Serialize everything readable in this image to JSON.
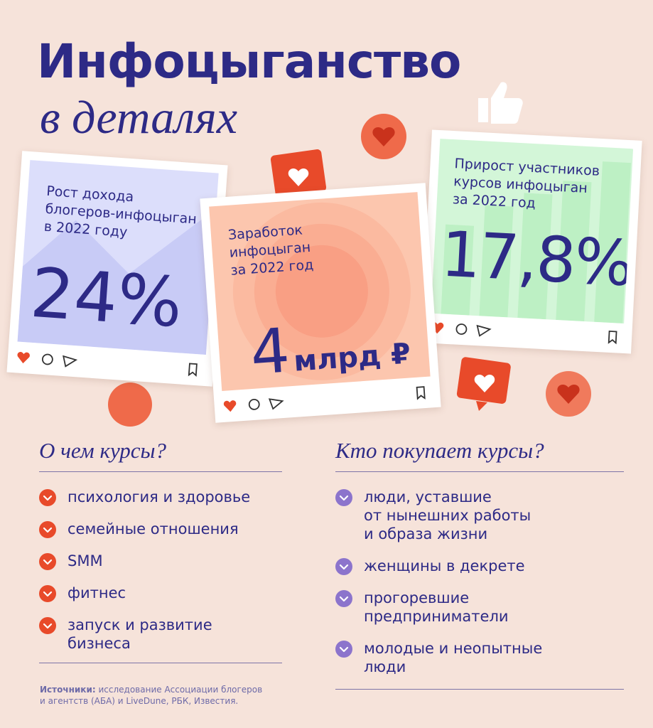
{
  "title": {
    "line1": "Инфоцыганство",
    "line2": "в деталях"
  },
  "cards": [
    {
      "label": [
        "Рост дохода",
        "блогеров-инфоцыган",
        "в 2022 году"
      ],
      "value": "24%"
    },
    {
      "label": [
        "Заработок",
        "инфоцыган",
        "за 2022 год"
      ],
      "value": "4",
      "unit": "млрд ₽"
    },
    {
      "label": [
        "Прирост участников",
        "курсов инфоцыган",
        "за 2022 год"
      ],
      "value": "17,8%"
    }
  ],
  "sections": [
    {
      "heading": "О чем курсы?",
      "items": [
        [
          "психология и здоровье"
        ],
        [
          "семейные отношения"
        ],
        [
          "SMM"
        ],
        [
          "фитнес"
        ],
        [
          "запуск и развитие",
          "бизнеса"
        ]
      ]
    },
    {
      "heading": "Кто покупает курсы?",
      "items": [
        [
          "люди, уставшие",
          "от нынешних работы",
          "и образа жизни"
        ],
        [
          "женщины в декрете"
        ],
        [
          "прогоревшие",
          "предприниматели"
        ],
        [
          "молодые и неопытные",
          "люди"
        ]
      ]
    }
  ],
  "sources": {
    "label": "Источники:",
    "lines": [
      "исследование Ассоциации блогеров",
      "и агентств (АБА) и LiveDune, РБК, Известия."
    ]
  }
}
